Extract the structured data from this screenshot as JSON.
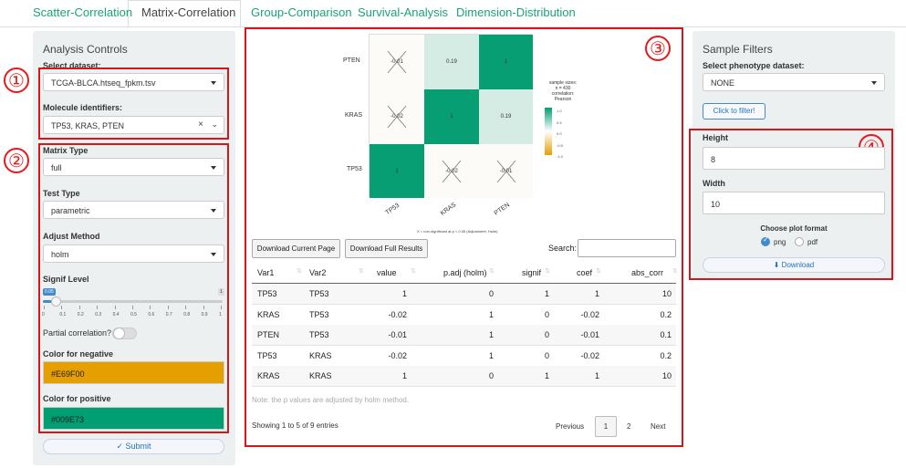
{
  "tabs": [
    {
      "label": "Scatter-Correlation"
    },
    {
      "label": "Matrix-Correlation"
    },
    {
      "label": "Group-Comparison"
    },
    {
      "label": "Survival-Analysis"
    },
    {
      "label": "Dimension-Distribution"
    }
  ],
  "left": {
    "title": "Analysis Controls",
    "dataset_label": "Select dataset:",
    "dataset_value": "TCGA-BLCA.htseq_fpkm.tsv",
    "molecule_label": "Molecule identifiers:",
    "molecule_value": "TP53, KRAS, PTEN",
    "matrix_type_label": "Matrix Type",
    "matrix_type_value": "full",
    "test_type_label": "Test Type",
    "test_type_value": "parametric",
    "adjust_label": "Adjust Method",
    "adjust_value": "holm",
    "signif_label": "Signif Level",
    "signif_value": "0.05",
    "signif_fraction": 0.05,
    "signif_min": "0",
    "signif_max": "1",
    "signif_ticks": [
      "0",
      "0.1",
      "0.2",
      "0.3",
      "0.4",
      "0.5",
      "0.6",
      "0.7",
      "0.8",
      "0.9",
      "1"
    ],
    "partial_label": "Partial correlation?",
    "neg_label": "Color for negative",
    "neg_value": "#E69F00",
    "pos_label": "Color for positive",
    "pos_value": "#009E73",
    "submit_label": "Submit"
  },
  "annotations": {
    "n1": "①",
    "n2": "②",
    "n3": "③",
    "n4": "④"
  },
  "heatmap": {
    "rows": [
      "PTEN",
      "KRAS",
      "TP53"
    ],
    "cols": [
      "TP53",
      "KRAS",
      "PTEN"
    ],
    "cells": [
      [
        "-0.01",
        "0.19",
        "1"
      ],
      [
        "-0.02",
        "1",
        "0.19"
      ],
      [
        "1",
        "-0.02",
        "-0.01"
      ]
    ],
    "legend_lines": [
      "sample sizes:",
      "n = 430",
      "correlation:",
      "Pearson"
    ],
    "legend_ticks": [
      "1.0",
      "0.5",
      "0.0",
      "-0.5",
      "-1.0"
    ],
    "footnote": "X = non-significant at p < 0.05 (Adjustment: Holm)"
  },
  "table": {
    "download_current": "Download Current Page",
    "download_full": "Download Full Results",
    "search_label": "Search:",
    "headers": [
      "Var1",
      "Var2",
      "value",
      "p.adj (holm)",
      "signif",
      "coef",
      "abs_corr"
    ],
    "rows": [
      [
        "TP53",
        "TP53",
        "1",
        "0",
        "1",
        "1",
        "10"
      ],
      [
        "KRAS",
        "TP53",
        "-0.02",
        "1",
        "0",
        "-0.02",
        "0.2"
      ],
      [
        "PTEN",
        "TP53",
        "-0.01",
        "1",
        "0",
        "-0.01",
        "0.1"
      ],
      [
        "TP53",
        "KRAS",
        "-0.02",
        "1",
        "0",
        "-0.02",
        "0.2"
      ],
      [
        "KRAS",
        "KRAS",
        "1",
        "0",
        "1",
        "1",
        "10"
      ]
    ],
    "note": "Note: the p values are adjusted by holm method.",
    "info": "Showing 1 to 5 of 9 entries",
    "prev": "Previous",
    "page1": "1",
    "page2": "2",
    "next": "Next"
  },
  "right": {
    "title": "Sample Filters",
    "pheno_label": "Select phenotype dataset:",
    "pheno_value": "NONE",
    "filter_btn": "Click to filter!",
    "height_label": "Height",
    "height_value": "8",
    "width_label": "Width",
    "width_value": "10",
    "format_label": "Choose plot format",
    "fmt_png": "png",
    "fmt_pdf": "pdf",
    "download": "Download"
  },
  "colors": {
    "accent": "#18a47a",
    "neg": "#E69F00",
    "pos": "#009E73",
    "annot": "#d7161b"
  }
}
